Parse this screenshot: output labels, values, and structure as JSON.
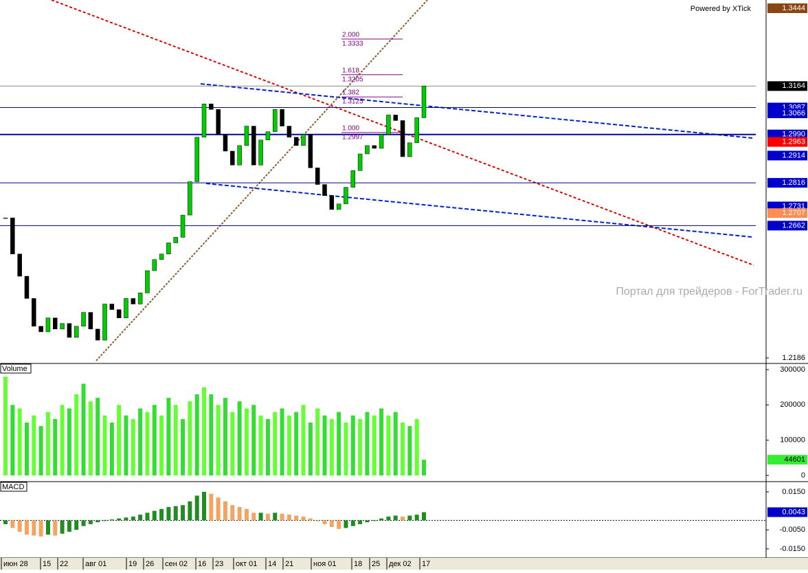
{
  "chart_data": {
    "type": "candlestick",
    "watermark_top": "Powered by XTick",
    "watermark": "Портал для трейдеров - ForTrader.ru",
    "volume_title": "Volume",
    "macd_title": "MACD",
    "ylim": [
      1.2186,
      1.3444
    ],
    "close": [
      1.269,
      1.256,
      1.248,
      1.24,
      1.23,
      1.228,
      1.233,
      1.229,
      1.231,
      1.226,
      1.23,
      1.235,
      1.229,
      1.225,
      1.238,
      1.236,
      1.233,
      1.24,
      1.238,
      1.242,
      1.25,
      1.254,
      1.256,
      1.26,
      1.262,
      1.27,
      1.282,
      1.298,
      1.31,
      1.308,
      1.299,
      1.293,
      1.288,
      1.295,
      1.302,
      1.288,
      1.297,
      1.3,
      1.308,
      1.302,
      1.298,
      1.295,
      1.299,
      1.287,
      1.281,
      1.277,
      1.272,
      1.274,
      1.28,
      1.286,
      1.292,
      1.295,
      1.294,
      1.299,
      1.306,
      1.304,
      1.291,
      1.296,
      1.305,
      1.3164
    ],
    "volume": [
      280000,
      200000,
      190000,
      150000,
      170000,
      140000,
      180000,
      160000,
      200000,
      190000,
      230000,
      260000,
      210000,
      220000,
      170000,
      150000,
      200000,
      170000,
      160000,
      190000,
      180000,
      200000,
      170000,
      220000,
      200000,
      160000,
      210000,
      230000,
      250000,
      230000,
      200000,
      220000,
      180000,
      210000,
      190000,
      200000,
      170000,
      160000,
      180000,
      190000,
      170000,
      180000,
      200000,
      150000,
      190000,
      170000,
      160000,
      180000,
      150000,
      170000,
      160000,
      180000,
      170000,
      190000,
      170000,
      180000,
      150000,
      140000,
      160000,
      44601
    ],
    "macd": [
      -0.002,
      -0.004,
      -0.006,
      -0.0075,
      -0.008,
      -0.0085,
      -0.0075,
      -0.008,
      -0.007,
      -0.006,
      -0.005,
      -0.003,
      -0.002,
      -0.001,
      0.0,
      0.0005,
      0.001,
      0.0015,
      0.002,
      0.003,
      0.004,
      0.005,
      0.006,
      0.007,
      0.0075,
      0.008,
      0.01,
      0.013,
      0.015,
      0.014,
      0.012,
      0.01,
      0.008,
      0.007,
      0.006,
      0.004,
      0.004,
      0.0035,
      0.004,
      0.0035,
      0.003,
      0.0025,
      0.002,
      0.001,
      -0.0005,
      -0.002,
      -0.0035,
      -0.0045,
      -0.004,
      -0.003,
      -0.002,
      -0.001,
      0.0,
      0.001,
      0.002,
      0.0025,
      0.002,
      0.0025,
      0.003,
      0.0043
    ],
    "x_labels": [
      "июн 28",
      "15",
      "22",
      "авг 01",
      "19",
      "26",
      "сен 02",
      "16",
      "23",
      "окт 01",
      "14",
      "21",
      "ноя 01",
      "18",
      "25",
      "дек 02",
      "17"
    ],
    "price_markers": [
      {
        "value": 1.3444,
        "color": "#8b4513"
      },
      {
        "value": 1.3164,
        "color": "#000000"
      },
      {
        "value": 1.3087,
        "color": "#0000cc"
      },
      {
        "value": 1.3066,
        "color": "#0000cc"
      },
      {
        "value": 1.299,
        "label": "1.2990",
        "color": "#0000cc"
      },
      {
        "value": 1.2963,
        "color": "#ff0000"
      },
      {
        "value": 1.2914,
        "color": "#0000cc"
      },
      {
        "value": 1.2816,
        "color": "#0000cc"
      },
      {
        "value": 1.2731,
        "color": "#0000cc"
      },
      {
        "value": 1.2707,
        "color": "#ff8c50"
      },
      {
        "value": 1.2662,
        "color": "#0000cc"
      },
      {
        "value": 1.2186
      }
    ],
    "levels": [
      1.3164,
      1.3087,
      1.299,
      1.2816,
      1.2662
    ],
    "fib": [
      {
        "ratio": "2.000",
        "price": 1.3333
      },
      {
        "ratio": "1.618",
        "price": 1.3205
      },
      {
        "ratio": "1.382",
        "price": 1.3125
      },
      {
        "ratio": "1.000",
        "price": 1.2997
      }
    ],
    "vol_ylim": [
      0,
      300000
    ],
    "vol_yticks": [
      0,
      100000,
      200000,
      300000
    ],
    "vol_marker": 44601,
    "macd_ylim": [
      -0.019,
      0.02
    ],
    "macd_yticks": [
      {
        "value": 0.015,
        "label": "0.0150"
      },
      {
        "value": -0.005,
        "label": "-0.0050"
      },
      {
        "value": -0.015,
        "label": "-0.0150"
      }
    ],
    "macd_marker": 0.0043
  }
}
